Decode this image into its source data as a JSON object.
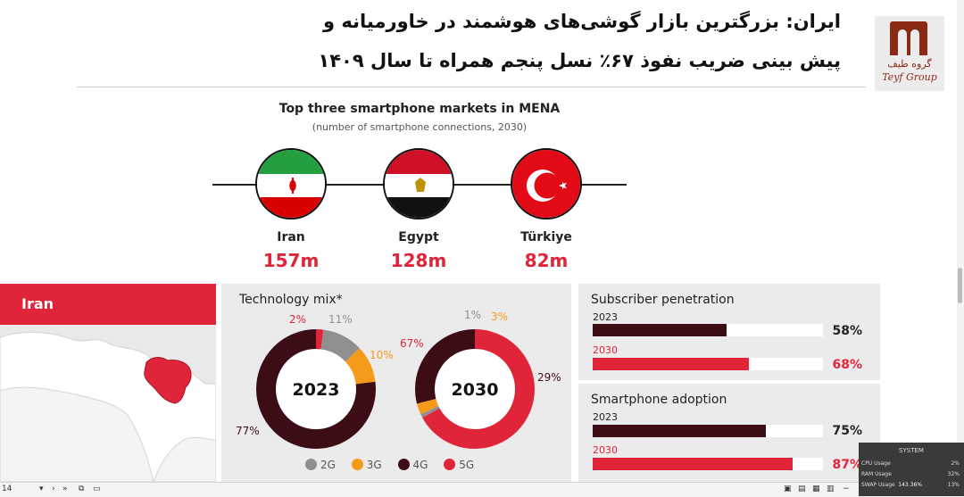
{
  "slide": {
    "title_line1": "ایران: بزرگترین بازار گوشی‌های هوشمند در خاورمیانه و",
    "title_line2": "پیش بینی ضریب نفوذ ۶۷٪ نسل پنجم همراه تا سال ۱۴۰۹",
    "logo_text_fa": "گروه طیف",
    "logo_text_en": "Teyf Group"
  },
  "map_panel": {
    "title": "Iran"
  },
  "mix_panel": {
    "title": "Technology mix*"
  },
  "penetration_panel": {
    "title": "Subscriber penetration"
  },
  "adoption_panel": {
    "title": "Smartphone adoption"
  },
  "colors": {
    "accent_red": "#e0243a",
    "dark_maroon": "#3d0d16",
    "grey_2g": "#8f8f8f",
    "orange_3g": "#f59a1b"
  },
  "chart_data": [
    {
      "type": "bar",
      "title": "Top three smartphone markets in MENA",
      "subtitle": "(number of smartphone connections, 2030)",
      "categories": [
        "Iran",
        "Egypt",
        "Türkiye"
      ],
      "values": [
        157,
        128,
        82
      ],
      "value_labels": [
        "157m",
        "128m",
        "82m"
      ],
      "flag_icons": [
        "iran-flag-icon",
        "egypt-flag-icon",
        "turkiye-flag-icon"
      ]
    },
    {
      "type": "pie",
      "center_label": "2023",
      "legend": [
        "2G",
        "3G",
        "4G",
        "5G"
      ],
      "series": [
        {
          "name": "2G",
          "value": 11,
          "label": "11%"
        },
        {
          "name": "3G",
          "value": 10,
          "label": "10%"
        },
        {
          "name": "4G",
          "value": 77,
          "label": "77%"
        },
        {
          "name": "5G",
          "value": 2,
          "label": "2%"
        }
      ]
    },
    {
      "type": "pie",
      "center_label": "2030",
      "legend": [
        "2G",
        "3G",
        "4G",
        "5G"
      ],
      "series": [
        {
          "name": "2G",
          "value": 1,
          "label": "1%"
        },
        {
          "name": "3G",
          "value": 3,
          "label": "3%"
        },
        {
          "name": "4G",
          "value": 29,
          "label": "29%"
        },
        {
          "name": "5G",
          "value": 67,
          "label": "67%"
        }
      ]
    },
    {
      "type": "bar",
      "title": "Subscriber penetration",
      "categories": [
        "2023",
        "2030"
      ],
      "values": [
        58,
        68
      ],
      "value_labels": [
        "58%",
        "68%"
      ],
      "ylim": [
        0,
        100
      ]
    },
    {
      "type": "bar",
      "title": "Smartphone adoption",
      "categories": [
        "2023",
        "2030"
      ],
      "values": [
        75,
        87
      ],
      "value_labels": [
        "75%",
        "87%"
      ],
      "ylim": [
        0,
        100
      ]
    }
  ],
  "system_overlay": {
    "title": "SYSTEM",
    "rows": [
      {
        "label": "CPU Usage",
        "value": "2%"
      },
      {
        "label": "RAM Usage",
        "value": "32%"
      },
      {
        "label": "SWAP Usage",
        "value": "13%"
      }
    ]
  },
  "status_bar": {
    "page": "14",
    "zoom": "143.36%"
  }
}
